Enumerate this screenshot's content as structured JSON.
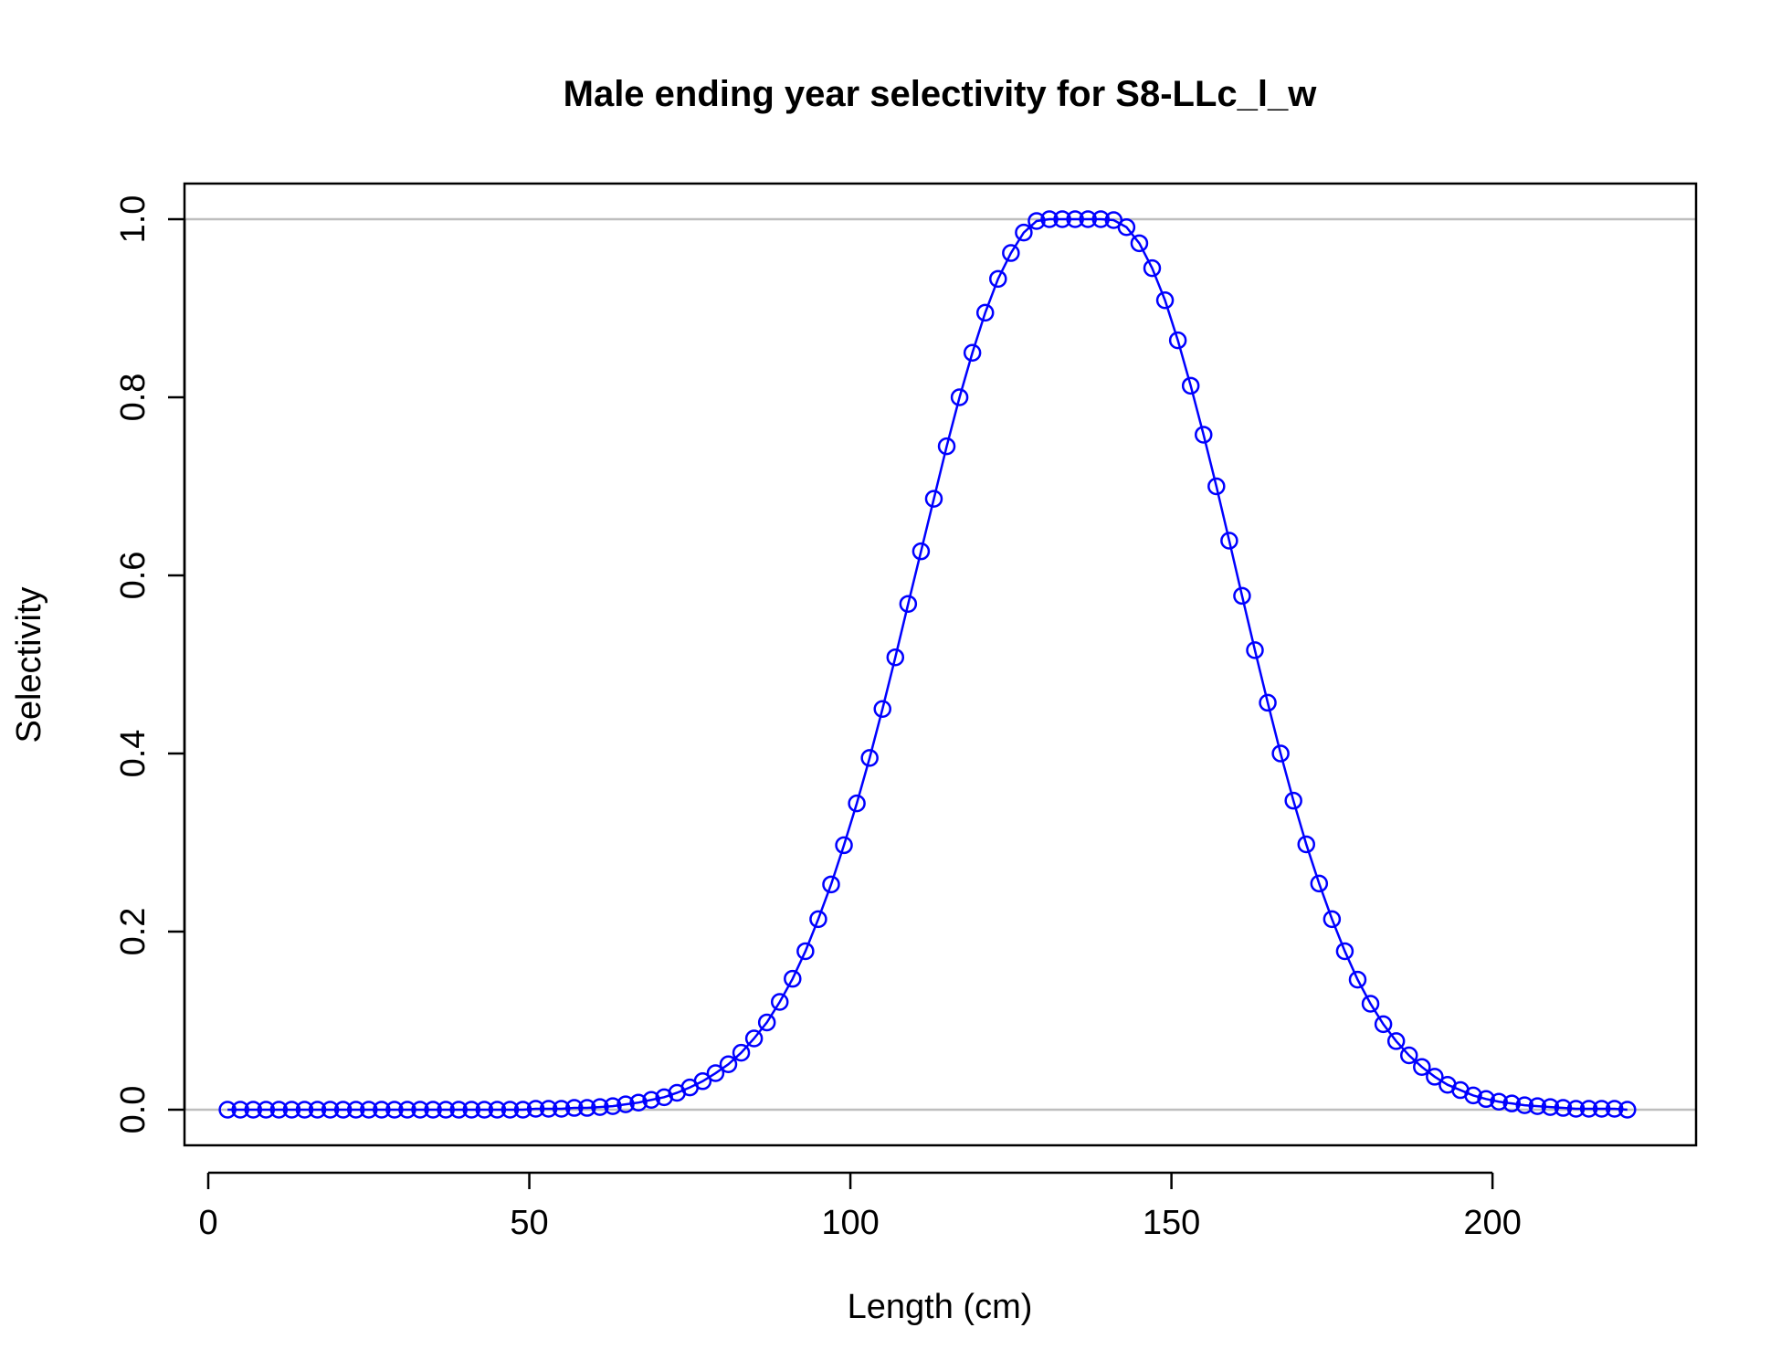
{
  "chart_data": {
    "type": "line",
    "title": "Male ending year selectivity for S8-LLc_l_w",
    "xlabel": "Length (cm)",
    "ylabel": "Selectivity",
    "xlim": [
      -3.7,
      231.7
    ],
    "ylim": [
      -0.04,
      1.04
    ],
    "x_ticks": [
      0,
      50,
      100,
      150,
      200
    ],
    "x_tick_labels": [
      "0",
      "50",
      "100",
      "150",
      "200"
    ],
    "y_ticks": [
      0.0,
      0.2,
      0.4,
      0.6,
      0.8,
      1.0
    ],
    "y_tick_labels": [
      "0.0",
      "0.2",
      "0.4",
      "0.6",
      "0.8",
      "1.0"
    ],
    "reference_lines": [
      0,
      1
    ],
    "grid": false,
    "markers": "open-circle",
    "colors": {
      "series": "#0000ff",
      "reference": "#bebebe",
      "axes": "#000000"
    },
    "series": [
      {
        "x": [
          3,
          5,
          7,
          9,
          11,
          13,
          15,
          17,
          19,
          21,
          23,
          25,
          27,
          29,
          31,
          33,
          35,
          37,
          39,
          41,
          43,
          45,
          47,
          49,
          51,
          53,
          55,
          57,
          59,
          61,
          63,
          65,
          67,
          69,
          71,
          73,
          75,
          77,
          79,
          81,
          83,
          85,
          87,
          89,
          91,
          93,
          95,
          97,
          99,
          101,
          103,
          105,
          107,
          109,
          111,
          113,
          115,
          117,
          119,
          121,
          123,
          125,
          127,
          129,
          131,
          133,
          135,
          137,
          139,
          141,
          143,
          145,
          147,
          149,
          151,
          153,
          155,
          157,
          159,
          161,
          163,
          165,
          167,
          169,
          171,
          173,
          175,
          177,
          179,
          181,
          183,
          185,
          187,
          189,
          191,
          193,
          195,
          197,
          199,
          201,
          203,
          205,
          207,
          209,
          211,
          213,
          215,
          217,
          219,
          221
        ],
        "values": [
          0.0,
          0.0,
          0.0,
          0.0,
          0.0,
          0.0,
          0.0,
          0.0,
          0.0,
          0.0,
          0.0,
          0.0,
          0.0,
          0.0,
          0.0,
          0.0,
          0.0,
          0.0,
          0.0,
          0.0,
          0.0,
          0.0,
          0.0,
          0.0,
          0.001,
          0.001,
          0.001,
          0.002,
          0.002,
          0.003,
          0.004,
          0.006,
          0.008,
          0.011,
          0.014,
          0.019,
          0.025,
          0.032,
          0.041,
          0.051,
          0.064,
          0.08,
          0.098,
          0.121,
          0.147,
          0.178,
          0.214,
          0.253,
          0.297,
          0.344,
          0.395,
          0.45,
          0.508,
          0.568,
          0.627,
          0.686,
          0.745,
          0.8,
          0.85,
          0.895,
          0.933,
          0.962,
          0.985,
          0.998,
          1.0,
          1.0,
          1.0,
          1.0,
          1.0,
          0.999,
          0.991,
          0.973,
          0.945,
          0.909,
          0.864,
          0.813,
          0.758,
          0.7,
          0.639,
          0.577,
          0.516,
          0.457,
          0.4,
          0.347,
          0.298,
          0.254,
          0.214,
          0.178,
          0.146,
          0.119,
          0.096,
          0.077,
          0.061,
          0.048,
          0.037,
          0.028,
          0.022,
          0.016,
          0.012,
          0.009,
          0.007,
          0.005,
          0.004,
          0.003,
          0.002,
          0.001,
          0.001,
          0.001,
          0.001,
          0.0
        ]
      }
    ]
  }
}
